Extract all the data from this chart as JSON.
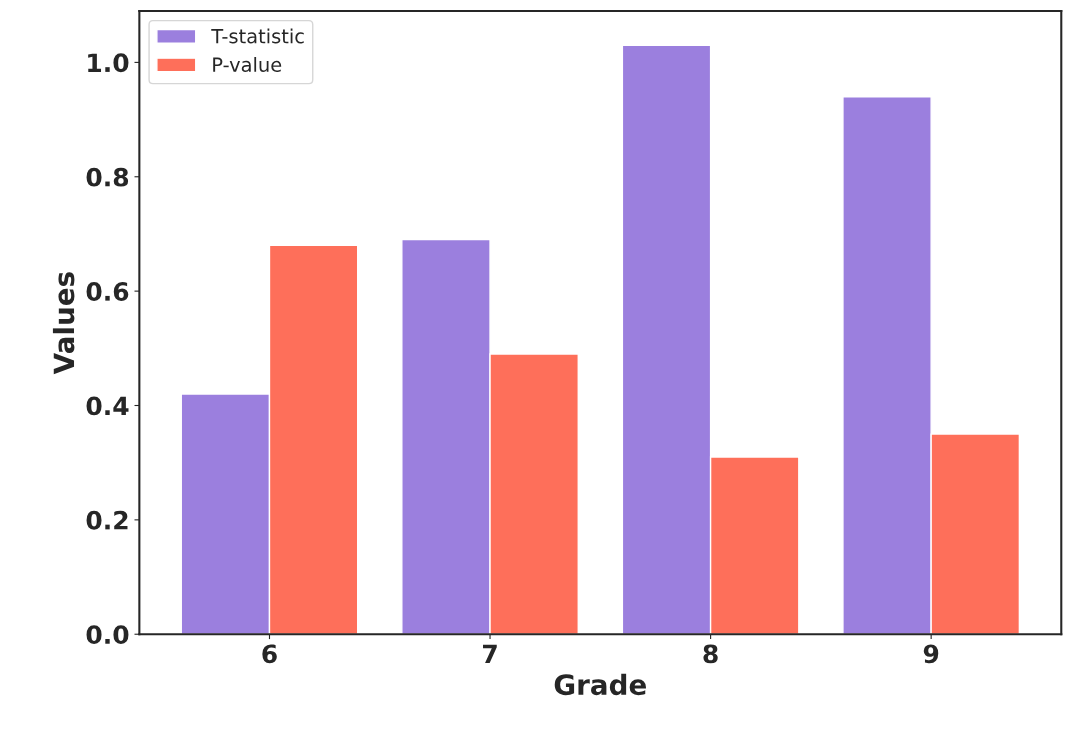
{
  "chart_data": {
    "type": "bar",
    "xlabel": "Grade",
    "ylabel": "Values",
    "categories": [
      "6",
      "7",
      "8",
      "9"
    ],
    "series": [
      {
        "name": "T-statistic",
        "color": "#9b7fde",
        "values": [
          0.42,
          0.69,
          1.03,
          0.94
        ]
      },
      {
        "name": "P-value",
        "color": "#fe6f5a",
        "values": [
          0.68,
          0.49,
          0.31,
          0.35
        ]
      }
    ],
    "ylim": [
      0,
      1.09
    ],
    "yticks": [
      {
        "value": 0,
        "label": "0.0"
      },
      0.2,
      0.4,
      0.6,
      0.8,
      {
        "value": 1,
        "label": "1.0"
      }
    ],
    "grid": false,
    "legend": "top left"
  }
}
